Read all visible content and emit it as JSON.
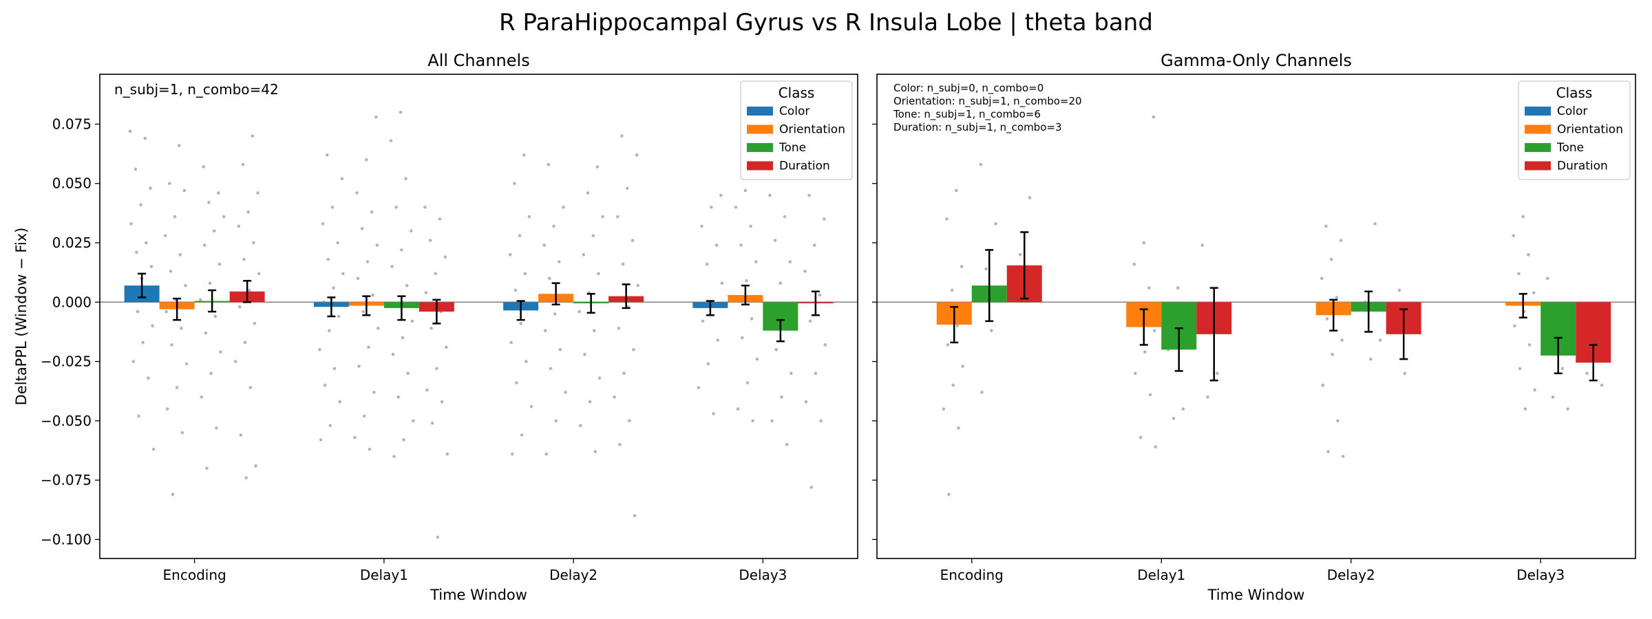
{
  "figure": {
    "suptitle": "R ParaHippocampal Gyrus vs R Insula Lobe  |  theta band"
  },
  "colors": {
    "Color": "#1f77b4",
    "Orientation": "#ff7f0e",
    "Tone": "#2ca02c",
    "Duration": "#d62728",
    "points": "#b5b5b5",
    "zero_line": "#808080",
    "errorbar": "#000000"
  },
  "chart_data": [
    {
      "type": "bar",
      "title": "All Channels",
      "xlabel": "Time Window",
      "ylabel": "DeltaPPL (Window − Fix)",
      "categories": [
        "Encoding",
        "Delay1",
        "Delay2",
        "Delay3"
      ],
      "ylim": [
        -0.108,
        0.096
      ],
      "yticks": [
        -0.1,
        -0.075,
        -0.05,
        -0.025,
        0.0,
        0.025,
        0.05,
        0.075
      ],
      "ytick_labels": [
        "−0.100",
        "−0.075",
        "−0.050",
        "−0.025",
        "0.000",
        "0.025",
        "0.050",
        "0.075"
      ],
      "annotations": [
        "n_subj=1, n_combo=42"
      ],
      "legend": {
        "title": "Class",
        "position": "top-right"
      },
      "series": [
        {
          "name": "Color",
          "values": [
            0.007,
            -0.002,
            -0.0035,
            -0.0025
          ],
          "err": [
            0.005,
            0.004,
            0.004,
            0.003
          ]
        },
        {
          "name": "Orientation",
          "values": [
            -0.003,
            -0.0015,
            0.0035,
            0.003
          ],
          "err": [
            0.0045,
            0.004,
            0.0045,
            0.004
          ]
        },
        {
          "name": "Tone",
          "values": [
            0.0005,
            -0.0025,
            -0.0005,
            -0.012
          ],
          "err": [
            0.0045,
            0.005,
            0.004,
            0.0045
          ]
        },
        {
          "name": "Duration",
          "values": [
            0.0045,
            -0.004,
            0.0025,
            -0.0005
          ],
          "err": [
            0.0045,
            0.005,
            0.005,
            0.005
          ]
        }
      ],
      "points": [
        [
          [
            0.072,
            0.069,
            0.056,
            0.048,
            0.041,
            0.033,
            0.025,
            0.021,
            0.015,
            0.01,
            0.006,
            0.002,
            -0.004,
            -0.01,
            -0.017,
            -0.025,
            -0.032,
            -0.048,
            -0.062
          ],
          [
            0.066,
            0.05,
            0.047,
            0.036,
            0.028,
            0.02,
            0.013,
            0.007,
            0.001,
            -0.004,
            -0.011,
            -0.018,
            -0.026,
            -0.036,
            -0.045,
            -0.055,
            -0.081
          ],
          [
            0.057,
            0.046,
            0.042,
            0.036,
            0.03,
            0.024,
            0.016,
            0.008,
            0.001,
            -0.006,
            -0.013,
            -0.021,
            -0.03,
            -0.04,
            -0.053,
            -0.07
          ],
          [
            0.07,
            0.058,
            0.046,
            0.038,
            0.032,
            0.025,
            0.018,
            0.012,
            0.005,
            -0.002,
            -0.009,
            -0.017,
            -0.025,
            -0.036,
            -0.056,
            -0.069,
            -0.074
          ]
        ],
        [
          [
            0.062,
            0.052,
            0.04,
            0.033,
            0.025,
            0.018,
            0.012,
            0.006,
            0.0,
            -0.006,
            -0.012,
            -0.02,
            -0.028,
            -0.035,
            -0.042,
            -0.052,
            -0.058
          ],
          [
            0.078,
            0.06,
            0.046,
            0.038,
            0.031,
            0.024,
            0.017,
            0.01,
            0.003,
            -0.004,
            -0.011,
            -0.019,
            -0.027,
            -0.038,
            -0.048,
            -0.057,
            -0.062
          ],
          [
            0.08,
            0.068,
            0.052,
            0.04,
            0.03,
            0.022,
            0.015,
            0.007,
            -0.001,
            -0.008,
            -0.015,
            -0.022,
            -0.03,
            -0.04,
            -0.05,
            -0.058,
            -0.065
          ],
          [
            0.04,
            0.035,
            0.026,
            0.019,
            0.012,
            0.004,
            -0.004,
            -0.011,
            -0.019,
            -0.028,
            -0.037,
            -0.042,
            -0.051,
            -0.064,
            -0.099
          ]
        ],
        [
          [
            0.062,
            0.05,
            0.036,
            0.028,
            0.02,
            0.012,
            0.005,
            -0.002,
            -0.009,
            -0.017,
            -0.025,
            -0.034,
            -0.044,
            -0.056,
            -0.064
          ],
          [
            0.058,
            0.04,
            0.032,
            0.024,
            0.017,
            0.01,
            0.003,
            -0.005,
            -0.012,
            -0.02,
            -0.028,
            -0.038,
            -0.05,
            -0.064
          ],
          [
            0.057,
            0.046,
            0.036,
            0.028,
            0.02,
            0.012,
            0.004,
            -0.004,
            -0.012,
            -0.022,
            -0.032,
            -0.042,
            -0.052,
            -0.063
          ],
          [
            0.07,
            0.062,
            0.048,
            0.036,
            0.026,
            0.016,
            0.007,
            -0.002,
            -0.011,
            -0.02,
            -0.03,
            -0.04,
            -0.05,
            -0.06,
            -0.09
          ]
        ],
        [
          [
            0.045,
            0.04,
            0.032,
            0.024,
            0.016,
            0.008,
            0.0,
            -0.008,
            -0.016,
            -0.026,
            -0.036,
            -0.047
          ],
          [
            0.047,
            0.04,
            0.032,
            0.024,
            0.017,
            0.009,
            0.001,
            -0.007,
            -0.015,
            -0.024,
            -0.034,
            -0.045,
            -0.05
          ],
          [
            0.045,
            0.036,
            0.026,
            0.017,
            0.008,
            -0.001,
            -0.01,
            -0.02,
            -0.03,
            -0.04,
            -0.05,
            -0.06
          ],
          [
            0.055,
            0.045,
            0.035,
            0.024,
            0.013,
            0.003,
            -0.008,
            -0.018,
            -0.03,
            -0.042,
            -0.05,
            -0.078
          ]
        ]
      ]
    },
    {
      "type": "bar",
      "title": "Gamma-Only Channels",
      "xlabel": "Time Window",
      "ylabel": "",
      "categories": [
        "Encoding",
        "Delay1",
        "Delay2",
        "Delay3"
      ],
      "ylim": [
        -0.108,
        0.096
      ],
      "yticks": [
        -0.1,
        -0.075,
        -0.05,
        -0.025,
        0.0,
        0.025,
        0.05,
        0.075
      ],
      "ytick_labels": [],
      "annotations": [
        "Color: n_subj=0, n_combo=0",
        "Orientation: n_subj=1, n_combo=20",
        "Tone: n_subj=1, n_combo=6",
        "Duration: n_subj=1, n_combo=3"
      ],
      "legend": {
        "title": "Class",
        "position": "top-right"
      },
      "series": [
        {
          "name": "Color",
          "values": [
            null,
            null,
            null,
            null
          ],
          "err": [
            null,
            null,
            null,
            null
          ]
        },
        {
          "name": "Orientation",
          "values": [
            -0.0095,
            -0.0105,
            -0.0055,
            -0.0015
          ],
          "err": [
            0.0075,
            0.0075,
            0.0065,
            0.005
          ]
        },
        {
          "name": "Tone",
          "values": [
            0.007,
            -0.02,
            -0.004,
            -0.0225
          ],
          "err": [
            0.015,
            0.009,
            0.0085,
            0.0075
          ]
        },
        {
          "name": "Duration",
          "values": [
            0.0155,
            -0.0135,
            -0.0135,
            -0.0255
          ],
          "err": [
            0.014,
            0.0195,
            0.0105,
            0.0075
          ]
        }
      ],
      "points": [
        [
          [],
          [
            0.047,
            0.035,
            0.015,
            0.005,
            -0.002,
            -0.01,
            -0.018,
            -0.027,
            -0.035,
            -0.045,
            -0.053,
            -0.081
          ],
          [
            0.058,
            0.033,
            0.014,
            0.003,
            -0.012,
            -0.038
          ],
          [
            0.044,
            0.02,
            0.008
          ]
        ],
        [
          [],
          [
            0.078,
            0.025,
            0.016,
            0.006,
            -0.003,
            -0.012,
            -0.021,
            -0.03,
            -0.039,
            -0.057,
            -0.061
          ],
          [
            0.006,
            -0.02,
            -0.045,
            -0.049
          ],
          [
            0.024,
            -0.03,
            -0.04
          ]
        ],
        [
          [],
          [
            0.032,
            0.026,
            0.018,
            0.01,
            0.002,
            -0.007,
            -0.016,
            -0.022,
            -0.035,
            -0.05,
            -0.063,
            -0.065
          ],
          [
            0.033,
            0.0,
            -0.016,
            -0.024
          ],
          [
            0.005,
            -0.013,
            -0.03
          ]
        ],
        [
          [],
          [
            0.036,
            0.028,
            0.02,
            0.012,
            0.004,
            -0.004,
            -0.01,
            -0.018,
            -0.028,
            -0.037,
            -0.045
          ],
          [
            0.01,
            -0.028,
            -0.04,
            -0.045
          ],
          [
            -0.018,
            -0.03,
            -0.035
          ]
        ]
      ]
    }
  ]
}
